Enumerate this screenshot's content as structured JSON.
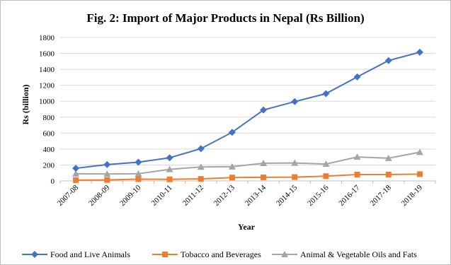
{
  "chart_data": {
    "type": "line",
    "title": "Fig. 2: Import of Major Products in Nepal (Rs Billion)",
    "xlabel": "Year",
    "ylabel": "Rs (billion)",
    "ylim": [
      0,
      1800
    ],
    "yticks": [
      0,
      200,
      400,
      600,
      800,
      1000,
      1200,
      1400,
      1600,
      1800
    ],
    "grid": "horizontal",
    "legend_position": "bottom",
    "categories": [
      "2007-08",
      "2008-09",
      "2009-10",
      "2010-11",
      "2011-12",
      "2012-13",
      "2013-14",
      "2014-15",
      "2015-16",
      "2016-17",
      "2017-18",
      "2018-19"
    ],
    "series": [
      {
        "name": "Food and Live Animals",
        "color": "#4472c4",
        "marker": "diamond",
        "values": [
          158,
          205,
          235,
          290,
          405,
          610,
          890,
          995,
          1095,
          1305,
          1510,
          1615
        ]
      },
      {
        "name": "Tobacco and Beverages",
        "color": "#ed7d31",
        "marker": "square",
        "values": [
          10,
          12,
          22,
          20,
          25,
          42,
          45,
          48,
          60,
          80,
          80,
          85
        ]
      },
      {
        "name": "Animal & Vegetable Oils and Fats",
        "color": "#a5a5a5",
        "marker": "triangle",
        "values": [
          90,
          88,
          90,
          145,
          175,
          178,
          222,
          225,
          212,
          300,
          285,
          360
        ]
      }
    ]
  }
}
